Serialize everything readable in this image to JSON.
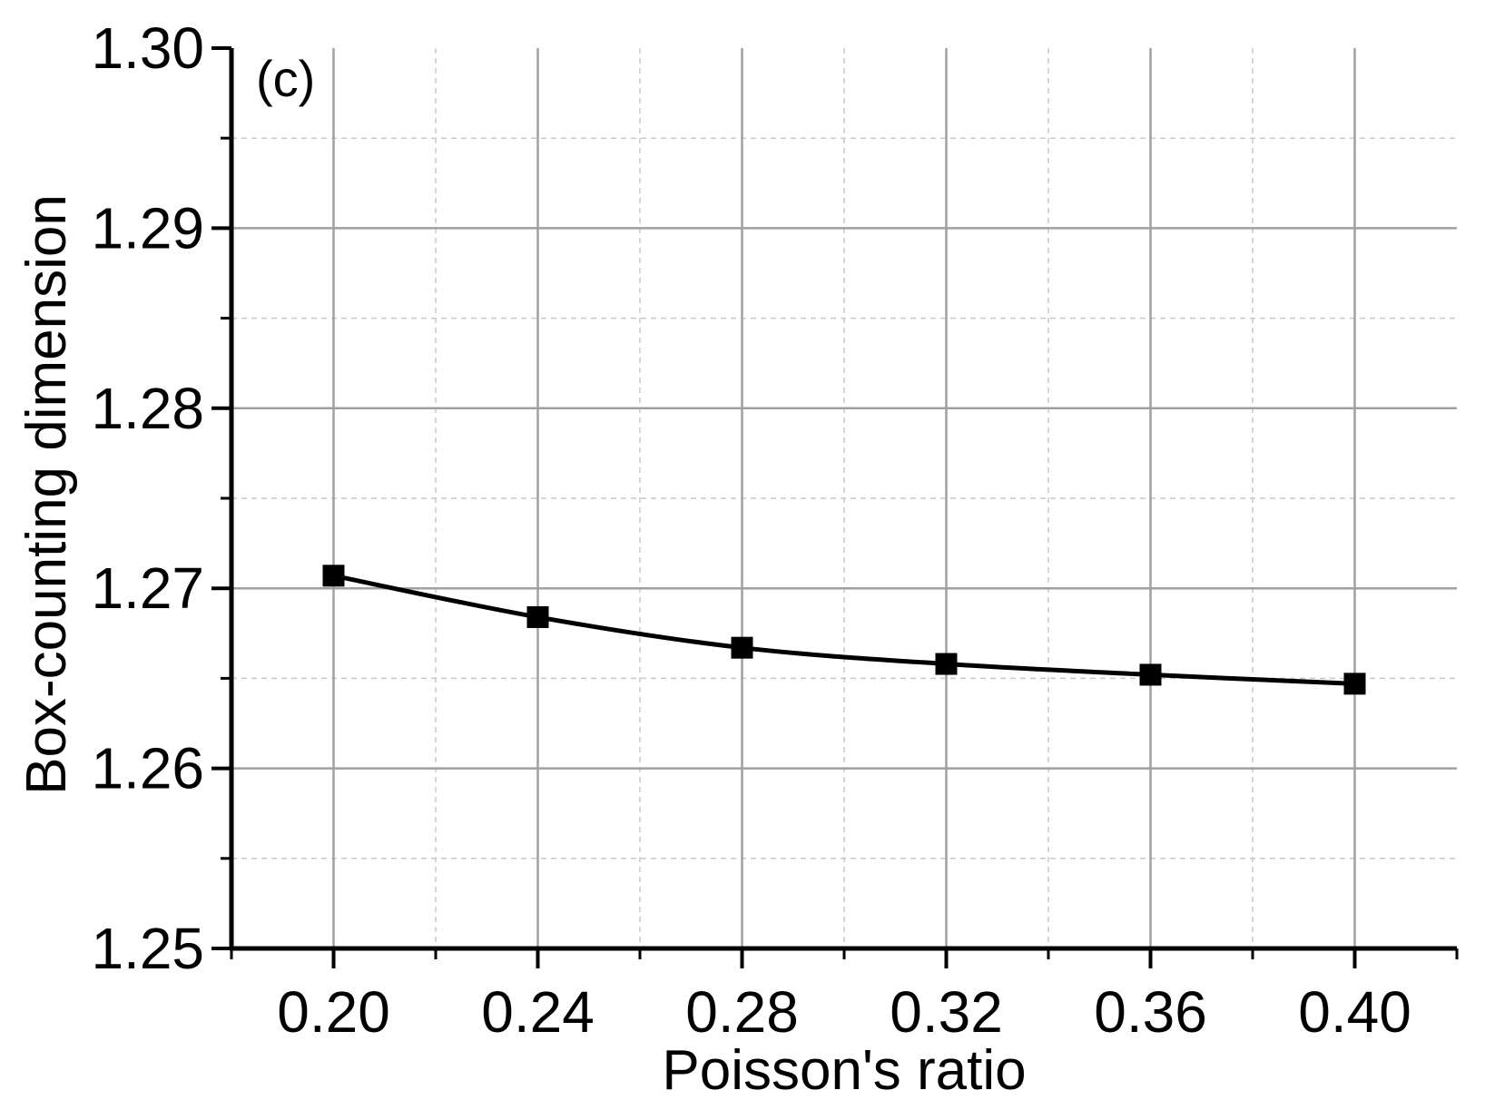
{
  "chart_data": {
    "type": "line",
    "panel_label": "(c)",
    "xlabel": "Poisson's ratio",
    "ylabel": "Box-counting dimension",
    "xlim": [
      0.18,
      0.42
    ],
    "ylim": [
      1.25,
      1.3
    ],
    "x_major_ticks": [
      0.2,
      0.24,
      0.28,
      0.32,
      0.36,
      0.4
    ],
    "x_minor_ticks": [
      0.18,
      0.22,
      0.26,
      0.3,
      0.34,
      0.38,
      0.42
    ],
    "x_tick_labels": [
      "0.20",
      "0.24",
      "0.28",
      "0.32",
      "0.36",
      "0.40"
    ],
    "y_major_ticks": [
      1.25,
      1.26,
      1.27,
      1.28,
      1.29,
      1.3
    ],
    "y_minor_ticks": [
      1.255,
      1.265,
      1.275,
      1.285,
      1.295
    ],
    "y_tick_labels": [
      "1.25",
      "1.26",
      "1.27",
      "1.28",
      "1.29",
      "1.30"
    ],
    "grid": true,
    "marker": "square",
    "color": "#000000",
    "series": [
      {
        "x": [
          0.2,
          0.24,
          0.28,
          0.32,
          0.36,
          0.4
        ],
        "y": [
          1.2707,
          1.2684,
          1.2667,
          1.2658,
          1.2652,
          1.2647
        ]
      }
    ]
  }
}
